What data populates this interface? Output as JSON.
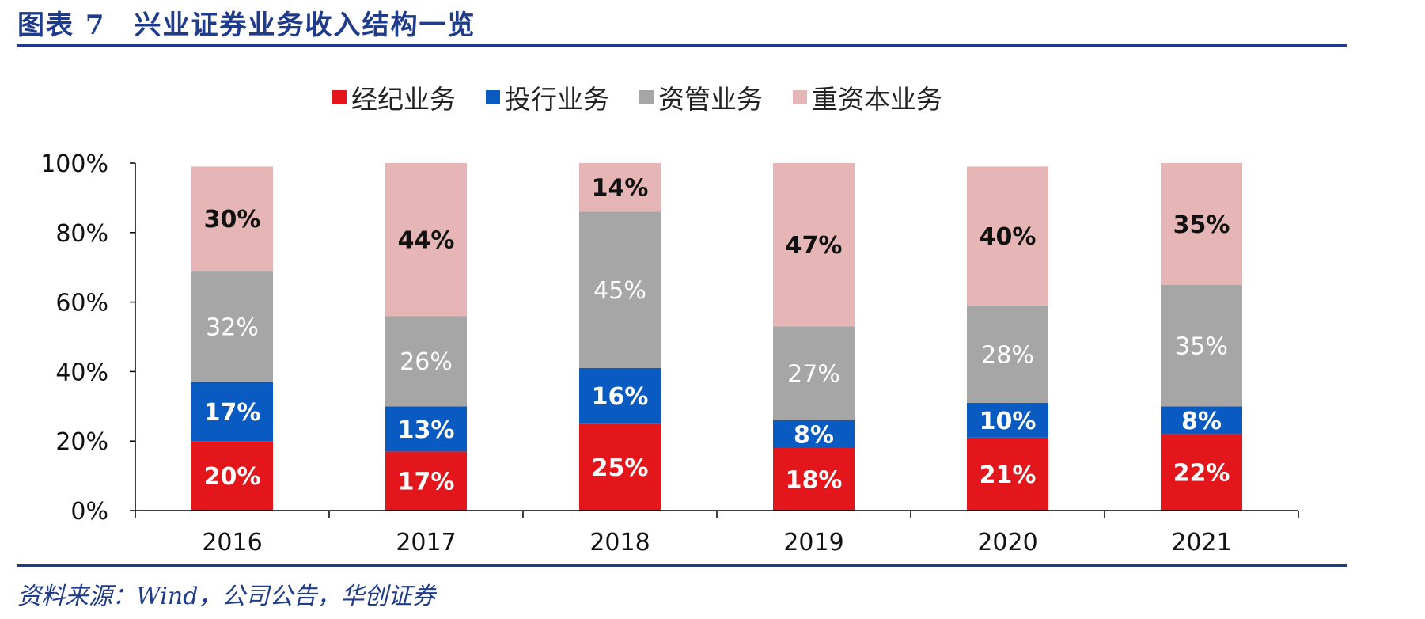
{
  "header": {
    "title": "图表 7　兴业证券业务收入结构一览"
  },
  "source": "资料来源：Wind，公司公告，华创证券",
  "colors": {
    "brokerage": "#e3161b",
    "investment_banking": "#0a5bc1",
    "asset_management": "#a6a6a6",
    "capital_intensive": "#e6b6b6",
    "rule": "#1f3b8c"
  },
  "chart_data": {
    "type": "bar",
    "stacked": true,
    "categories": [
      "2016",
      "2017",
      "2018",
      "2019",
      "2020",
      "2021"
    ],
    "series": [
      {
        "name": "经纪业务",
        "values": [
          20,
          17,
          25,
          18,
          21,
          22
        ],
        "labels": [
          "20%",
          "17%",
          "25%",
          "18%",
          "21%",
          "22%"
        ]
      },
      {
        "name": "投行业务",
        "values": [
          17,
          13,
          16,
          8,
          10,
          8
        ],
        "labels": [
          "17%",
          "13%",
          "16%",
          "8%",
          "10%",
          "8%"
        ]
      },
      {
        "name": "资管业务",
        "values": [
          32,
          26,
          45,
          27,
          28,
          35
        ],
        "labels": [
          "32%",
          "26%",
          "45%",
          "27%",
          "28%",
          "35%"
        ]
      },
      {
        "name": "重资本业务",
        "values": [
          30,
          44,
          14,
          47,
          40,
          35
        ],
        "labels": [
          "30%",
          "44%",
          "14%",
          "47%",
          "40%",
          "35%"
        ]
      }
    ],
    "ylim": [
      0,
      100
    ],
    "yticks": [
      "0%",
      "20%",
      "40%",
      "60%",
      "80%",
      "100%"
    ],
    "grid": false,
    "legend_position": "top"
  }
}
